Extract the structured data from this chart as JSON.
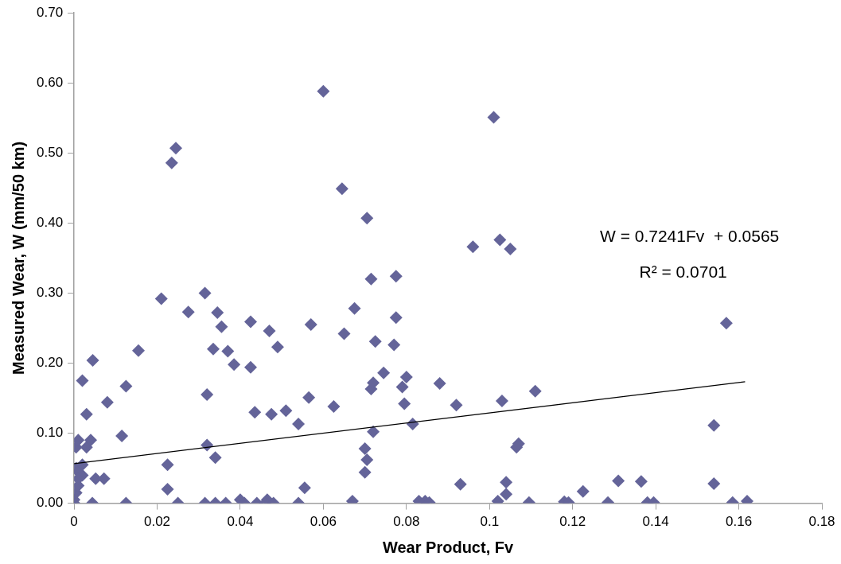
{
  "chart_data": {
    "type": "scatter",
    "xlabel": "Wear Product, Fv",
    "ylabel": "Measured Wear, W (mm/50 km)",
    "annotations": [
      "W = 0.7241Fv  + 0.0565",
      "R² = 0.0701"
    ],
    "xlim": [
      0,
      0.18
    ],
    "xticks": [
      0,
      0.02,
      0.04,
      0.06,
      0.08,
      0.1,
      0.12,
      0.14,
      0.16,
      0.18
    ],
    "ylim": [
      0,
      0.7
    ],
    "yticks": [
      {
        "value": 0,
        "label": "0.00"
      },
      {
        "value": 0.1,
        "label": "0.10"
      },
      {
        "value": 0.2,
        "label": "0.20"
      },
      {
        "value": 0.3,
        "label": "0.30"
      },
      {
        "value": 0.4,
        "label": "0.40"
      },
      {
        "value": 0.5,
        "label": "0.50"
      },
      {
        "value": 0.6,
        "label": "0.60"
      },
      {
        "value": 0.7,
        "label": "0.70"
      }
    ],
    "grid": false,
    "legend": false,
    "marker": "diamond",
    "series": [
      {
        "color": "#646499",
        "x": [
          0,
          0,
          0.0005,
          0.001,
          0.0005,
          0.001,
          0.002,
          0.0005,
          0.001,
          0.003,
          0.004,
          0.002,
          0.001,
          0.0044,
          0.0052,
          0.0072,
          0.0045,
          0.002,
          0.003,
          0.008,
          0.0115,
          0.0125,
          0.0125,
          0.0155,
          0.021,
          0.0225,
          0.0225,
          0.0235,
          0.0245,
          0.025,
          0.0275,
          0.0315,
          0.032,
          0.032,
          0.0315,
          0.0335,
          0.0345,
          0.034,
          0.034,
          0.0355,
          0.0365,
          0.037,
          0.0385,
          0.04,
          0.041,
          0.0425,
          0.0425,
          0.0435,
          0.044,
          0.0465,
          0.046,
          0.047,
          0.0475,
          0.048,
          0.049,
          0.051,
          0.054,
          0.054,
          0.0555,
          0.0565,
          0.057,
          0.06,
          0.0625,
          0.0645,
          0.065,
          0.067,
          0.0675,
          0.0705,
          0.07,
          0.0705,
          0.07,
          0.0715,
          0.0715,
          0.072,
          0.072,
          0.0725,
          0.0745,
          0.077,
          0.0775,
          0.0775,
          0.079,
          0.0795,
          0.08,
          0.0815,
          0.083,
          0.0845,
          0.0855,
          0.088,
          0.092,
          0.093,
          0.096,
          0.101,
          0.1025,
          0.102,
          0.103,
          0.104,
          0.104,
          0.105,
          0.1065,
          0.107,
          0.1095,
          0.111,
          0.118,
          0.119,
          0.1225,
          0.1285,
          0.131,
          0.1365,
          0.138,
          0.1395,
          0.154,
          0.154,
          0.157,
          0.1585,
          0.162
        ],
        "values": [
          0,
          0.005,
          0.015,
          0.025,
          0.05,
          0.045,
          0.04,
          0.08,
          0.09,
          0.08,
          0.09,
          0.055,
          0.035,
          0,
          0.035,
          0.035,
          0.204,
          0.175,
          0.127,
          0.144,
          0.096,
          0.167,
          0,
          0.218,
          0.292,
          0.055,
          0.02,
          0.486,
          0.507,
          0,
          0.273,
          0.3,
          0.155,
          0.083,
          0,
          0.22,
          0.272,
          0.065,
          0,
          0.252,
          0,
          0.217,
          0.198,
          0.005,
          0,
          0.259,
          0.194,
          0.13,
          0,
          0.005,
          0,
          0.246,
          0.127,
          0,
          0.223,
          0.132,
          0.113,
          0,
          0.022,
          0.151,
          0.255,
          0.588,
          0.138,
          0.449,
          0.242,
          0.003,
          0.278,
          0.407,
          0.078,
          0.062,
          0.044,
          0.32,
          0.163,
          0.172,
          0.102,
          0.231,
          0.186,
          0.226,
          0.324,
          0.265,
          0.166,
          0.142,
          0.18,
          0.113,
          0.003,
          0.003,
          0.001,
          0.171,
          0.14,
          0.027,
          0.366,
          0.551,
          0.376,
          0.003,
          0.146,
          0.013,
          0.03,
          0.363,
          0.08,
          0.085,
          0.001,
          0.16,
          0.002,
          0.001,
          0.017,
          0.001,
          0.032,
          0.031,
          0.001,
          0.001,
          0.111,
          0.028,
          0.257,
          0.001,
          0.003
        ]
      },
      {
        "type": "line",
        "color": "#000000",
        "marker": "none",
        "x": [
          0,
          0.1615
        ],
        "values": [
          0.0565,
          0.1734
        ]
      }
    ]
  }
}
